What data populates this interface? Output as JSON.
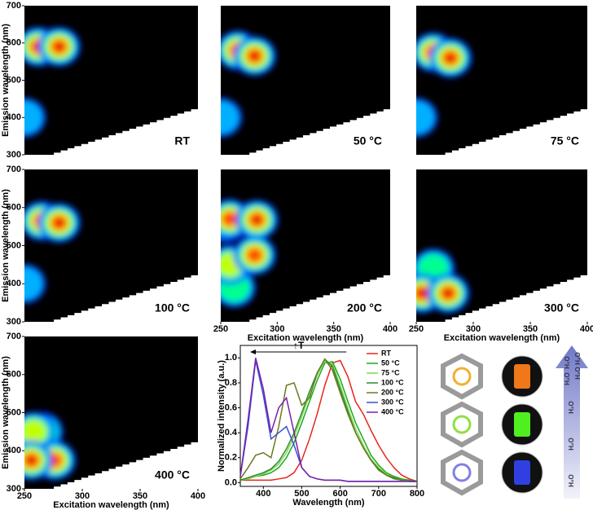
{
  "chart_data": [
    {
      "type": "heatmap",
      "title": "RT",
      "y_label": "Emission wavelength (nm)",
      "x": [
        250,
        262,
        280
      ],
      "y": [
        400,
        590,
        590
      ],
      "values": [
        0.25,
        1,
        1
      ],
      "xlim": [
        250,
        400
      ],
      "ylim": [
        300,
        700
      ],
      "yticks": [
        300,
        400,
        500,
        600,
        700
      ]
    },
    {
      "type": "heatmap",
      "title": "50 °C",
      "x": [
        250,
        265,
        280
      ],
      "y": [
        400,
        580,
        565
      ],
      "values": [
        0.2,
        0.85,
        1
      ],
      "xlim": [
        250,
        400
      ],
      "ylim": [
        300,
        700
      ]
    },
    {
      "type": "heatmap",
      "title": "75 °C",
      "x": [
        250,
        265,
        280
      ],
      "y": [
        400,
        575,
        560
      ],
      "values": [
        0.2,
        0.85,
        1
      ],
      "xlim": [
        250,
        400
      ],
      "ylim": [
        300,
        700
      ]
    },
    {
      "type": "heatmap",
      "title": "100 °C",
      "y_label": "Emission wavelength (nm)",
      "x": [
        250,
        265,
        280
      ],
      "y": [
        400,
        565,
        560
      ],
      "values": [
        0.25,
        0.85,
        1
      ],
      "xlim": [
        250,
        400
      ],
      "ylim": [
        300,
        700
      ],
      "yticks": [
        300,
        400,
        500,
        600,
        700
      ]
    },
    {
      "type": "heatmap",
      "title": "200 °C",
      "x_label": "Excitation wavelength (nm)",
      "x": [
        262,
        258,
        255,
        280,
        258,
        282
      ],
      "y": [
        390,
        450,
        560,
        475,
        570,
        568
      ],
      "values": [
        0.35,
        0.55,
        0.7,
        0.75,
        0.8,
        1
      ],
      "xlim": [
        250,
        400
      ],
      "ylim": [
        300,
        700
      ],
      "xticks": [
        250,
        300,
        350,
        400
      ]
    },
    {
      "type": "heatmap",
      "title": "300 °C",
      "x_label": "Excitation wavelength (nm)",
      "x": [
        265,
        255,
        278
      ],
      "y": [
        440,
        375,
        375
      ],
      "values": [
        0.3,
        0.95,
        0.9
      ],
      "xlim": [
        250,
        400
      ],
      "ylim": [
        300,
        700
      ],
      "xticks": [
        250,
        300,
        350,
        400
      ]
    },
    {
      "type": "heatmap",
      "title": "400 °C",
      "x_label": "Excitation wavelength (nm)",
      "y_label": "Emission wavelength (nm)",
      "x": [
        265,
        258,
        276,
        256
      ],
      "y": [
        450,
        450,
        375,
        375
      ],
      "values": [
        0.4,
        0.55,
        0.85,
        1
      ],
      "xlim": [
        250,
        400
      ],
      "ylim": [
        300,
        700
      ],
      "xticks": [
        250,
        300,
        350,
        400
      ],
      "yticks": [
        300,
        400,
        500,
        600,
        700
      ]
    },
    {
      "type": "line",
      "x_label": "Wavelength (nm)",
      "y_label": "Normalized intensity (a.u.)",
      "annotation": "↑T",
      "x": [
        340,
        360,
        380,
        400,
        420,
        440,
        460,
        480,
        500,
        520,
        540,
        560,
        580,
        600,
        620,
        640,
        660,
        680,
        700,
        720,
        740,
        760,
        780,
        800
      ],
      "xlim": [
        340,
        800
      ],
      "xticks": [
        400,
        500,
        600,
        700,
        800
      ],
      "ylim": [
        -0.03,
        1.1
      ],
      "yticks": [
        {
          "value": 0,
          "label": "0.0"
        },
        {
          "value": 0.2,
          "label": "0.2"
        },
        {
          "value": 0.4,
          "label": "0.4"
        },
        {
          "value": 0.6,
          "label": "0.6"
        },
        {
          "value": 0.8,
          "label": "0.8"
        },
        {
          "value": 1,
          "label": "1.0"
        }
      ],
      "legend": "upper right",
      "series": [
        {
          "name": "RT",
          "color": "#e8261c",
          "values": [
            0.02,
            0.02,
            0.02,
            0.02,
            0.02,
            0.03,
            0.04,
            0.08,
            0.18,
            0.35,
            0.55,
            0.78,
            0.96,
            0.98,
            0.85,
            0.65,
            0.55,
            0.42,
            0.3,
            0.2,
            0.12,
            0.06,
            0.03,
            0.01
          ]
        },
        {
          "name": "50 °C",
          "color": "#1fa81f",
          "values": [
            0.02,
            0.03,
            0.05,
            0.06,
            0.08,
            0.12,
            0.2,
            0.32,
            0.48,
            0.65,
            0.82,
            0.96,
            0.97,
            0.83,
            0.65,
            0.48,
            0.35,
            0.22,
            0.14,
            0.08,
            0.05,
            0.03,
            0.02,
            0.01
          ]
        },
        {
          "name": "75 °C",
          "color": "#7ed957",
          "values": [
            0.02,
            0.03,
            0.05,
            0.07,
            0.1,
            0.15,
            0.24,
            0.37,
            0.53,
            0.7,
            0.86,
            0.98,
            0.95,
            0.78,
            0.6,
            0.43,
            0.3,
            0.19,
            0.12,
            0.07,
            0.04,
            0.02,
            0.01,
            0.01
          ]
        },
        {
          "name": "100 °C",
          "color": "#2e8b2e",
          "values": [
            0.02,
            0.04,
            0.06,
            0.08,
            0.11,
            0.17,
            0.27,
            0.4,
            0.56,
            0.73,
            0.88,
            0.99,
            0.93,
            0.75,
            0.57,
            0.4,
            0.28,
            0.18,
            0.11,
            0.06,
            0.04,
            0.02,
            0.01,
            0.01
          ]
        },
        {
          "name": "200 °C",
          "color": "#6b7a1f",
          "values": [
            0.03,
            0.12,
            0.22,
            0.24,
            0.2,
            0.45,
            0.78,
            0.8,
            0.62,
            0.68,
            0.88,
            0.99,
            0.9,
            0.72,
            0.55,
            0.4,
            0.28,
            0.18,
            0.1,
            0.06,
            0.03,
            0.02,
            0.01,
            0.01
          ]
        },
        {
          "name": "300 °C",
          "color": "#3a4fd6",
          "values": [
            0.05,
            0.45,
            0.98,
            0.7,
            0.35,
            0.4,
            0.45,
            0.3,
            0.12,
            0.05,
            0.03,
            0.02,
            0.02,
            0.02,
            0.01,
            0.01,
            0.01,
            0.01,
            0.01,
            0.01,
            0.01,
            0.01,
            0.01,
            0.01
          ]
        },
        {
          "name": "400 °C",
          "color": "#7a1fa8",
          "values": [
            0.05,
            0.5,
            1,
            0.75,
            0.4,
            0.6,
            0.68,
            0.4,
            0.12,
            0.05,
            0.03,
            0.02,
            0.02,
            0.02,
            0.01,
            0.01,
            0.01,
            0.01,
            0.01,
            0.01,
            0.01,
            0.01,
            0.01,
            0.01
          ]
        }
      ]
    }
  ],
  "illustration": {
    "labels": [
      "H₂O",
      "H₂O",
      "H₂O",
      "H₂O",
      "H₂O",
      "H₂O",
      "H₂O"
    ]
  }
}
